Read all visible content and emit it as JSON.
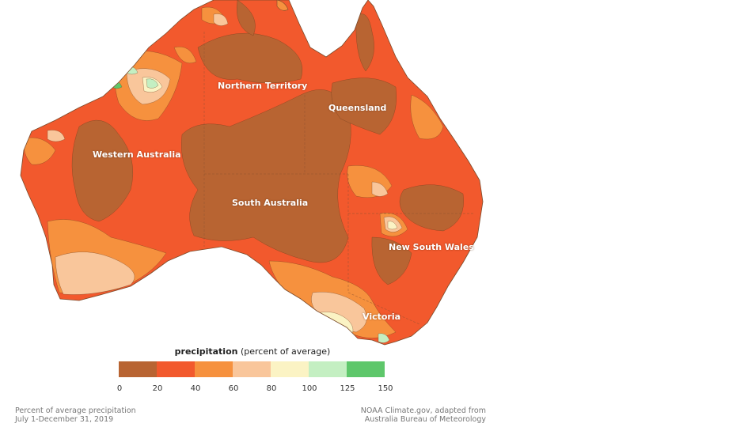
{
  "legend": {
    "title_bold": "precipitation",
    "title_rest": "(percent of average)",
    "bins": [
      {
        "color": "#b86432"
      },
      {
        "color": "#f2592d"
      },
      {
        "color": "#f6913e"
      },
      {
        "color": "#f9c69b"
      },
      {
        "color": "#fbf3c4"
      },
      {
        "color": "#c4efc2"
      },
      {
        "color": "#5ec76b"
      }
    ],
    "ticks": [
      "0",
      "20",
      "40",
      "60",
      "80",
      "100",
      "125",
      "150"
    ]
  },
  "regions": {
    "wa": "Western Australia",
    "nt": "Northern Territory",
    "qld": "Queensland",
    "sa": "South Australia",
    "nsw": "New South Wales",
    "vic": "Victoria"
  },
  "caption": {
    "line1": "Percent of average precipitation",
    "line2": "July 1-December 31, 2019"
  },
  "credit": {
    "line1": "NOAA Climate.gov, adapted from",
    "line2": "Australia Bureau of Meteorology"
  }
}
